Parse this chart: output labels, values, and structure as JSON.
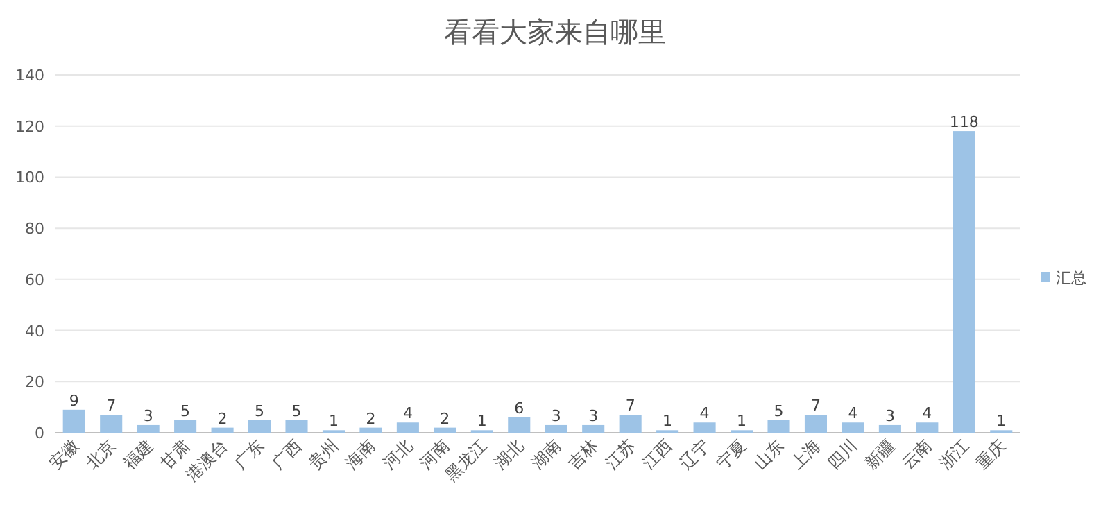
{
  "chart_data": {
    "type": "bar",
    "title": "看看大家来自哪里",
    "categories": [
      "安徽",
      "北京",
      "福建",
      "甘肃",
      "港澳台",
      "广东",
      "广西",
      "贵州",
      "海南",
      "河北",
      "河南",
      "黑龙江",
      "湖北",
      "湖南",
      "吉林",
      "江苏",
      "江西",
      "辽宁",
      "宁夏",
      "山东",
      "上海",
      "四川",
      "新疆",
      "云南",
      "浙江",
      "重庆"
    ],
    "series": [
      {
        "name": "汇总",
        "color": "#9dc3e6",
        "values": [
          9,
          7,
          3,
          5,
          2,
          5,
          5,
          1,
          2,
          4,
          2,
          1,
          6,
          3,
          3,
          7,
          1,
          4,
          1,
          5,
          7,
          4,
          3,
          4,
          118,
          1
        ]
      }
    ],
    "ylim": [
      0,
      140
    ],
    "yticks": [
      0,
      20,
      40,
      60,
      80,
      100,
      120,
      140
    ],
    "grid": "y",
    "legend": "right",
    "data_labels": true
  }
}
